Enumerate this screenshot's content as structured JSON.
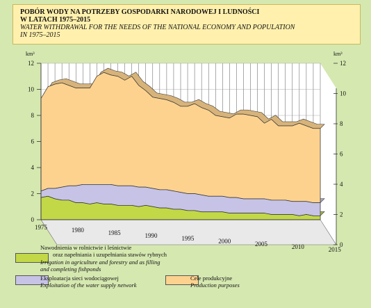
{
  "title": {
    "pl_line1": "POBÓR WODY NA POTRZEBY GOSPODARKI NARODOWEJ I LUDNOŚCI",
    "pl_line2": "W LATACH 1975–2015",
    "en_line1": "WATER WITHDRAWAL FOR THE NEEDS OF THE NATIONAL ECONOMY AND POPULATION",
    "en_line2": "IN 1975–2015"
  },
  "chart_data": {
    "type": "area",
    "stacked": true,
    "x": [
      1975,
      1976,
      1977,
      1978,
      1979,
      1980,
      1981,
      1982,
      1983,
      1984,
      1985,
      1986,
      1987,
      1988,
      1989,
      1990,
      1991,
      1992,
      1993,
      1994,
      1995,
      1996,
      1997,
      1998,
      1999,
      2000,
      2001,
      2002,
      2003,
      2004,
      2005,
      2006,
      2007,
      2008,
      2009,
      2010,
      2011,
      2012,
      2013,
      2014,
      2015
    ],
    "series": [
      {
        "name": "Nawodnienia w rolnictwie i leśnictwie oraz napełnianie i uzupełnianie stawów rybnych / Irrigation in agriculture and forestry and as filling and completing fishponds",
        "color": "#c3d847",
        "values": [
          1.7,
          1.8,
          1.6,
          1.5,
          1.5,
          1.3,
          1.3,
          1.2,
          1.3,
          1.2,
          1.2,
          1.1,
          1.1,
          1.1,
          1.0,
          1.1,
          1.0,
          0.9,
          0.9,
          0.8,
          0.8,
          0.7,
          0.7,
          0.6,
          0.6,
          0.6,
          0.6,
          0.5,
          0.5,
          0.5,
          0.5,
          0.5,
          0.5,
          0.4,
          0.4,
          0.4,
          0.4,
          0.3,
          0.4,
          0.3,
          0.3
        ]
      },
      {
        "name": "Eksploatacja sieci wodociągowej / Exploitation of the water supply network",
        "color": "#c6c3e6",
        "values": [
          0.5,
          0.6,
          0.8,
          1.0,
          1.1,
          1.3,
          1.4,
          1.5,
          1.4,
          1.5,
          1.5,
          1.5,
          1.5,
          1.5,
          1.5,
          1.4,
          1.4,
          1.4,
          1.4,
          1.4,
          1.3,
          1.3,
          1.3,
          1.3,
          1.2,
          1.2,
          1.2,
          1.2,
          1.2,
          1.1,
          1.1,
          1.1,
          1.1,
          1.1,
          1.1,
          1.1,
          1.0,
          1.1,
          1.0,
          1.0,
          1.0
        ]
      },
      {
        "name": "Cele produkcyjne / Production purposes",
        "color": "#fdd28f",
        "values": [
          7.1,
          7.8,
          8.0,
          8.0,
          7.7,
          7.5,
          7.4,
          7.4,
          8.3,
          8.6,
          8.4,
          8.4,
          8.1,
          8.4,
          7.8,
          7.4,
          7.0,
          7.0,
          6.9,
          6.8,
          6.6,
          6.7,
          6.9,
          6.7,
          6.6,
          6.2,
          6.1,
          6.1,
          6.4,
          6.5,
          6.4,
          6.3,
          5.8,
          6.2,
          5.7,
          5.7,
          5.8,
          6.0,
          5.8,
          5.7,
          5.7
        ]
      }
    ],
    "y_unit": "km³",
    "y_ticks_left": [
      0,
      2,
      4,
      6,
      8,
      10,
      12
    ],
    "y_ticks_right": [
      0,
      2,
      4,
      6,
      8,
      10,
      12
    ],
    "x_tick_labels": [
      1975,
      1980,
      1985,
      1990,
      1995,
      2000,
      2005,
      2010,
      2015
    ],
    "ylim": [
      0,
      12
    ]
  },
  "legend": {
    "irrigation": {
      "pl_line1": "Nawodnienia w rolnictwie i leśnictwie",
      "pl_line2": "oraz napełniania i uzupełniania stawów rybnych",
      "en_line1": "Irrigation in agriculture and forestry and as filling",
      "en_line2": "and completing fishponds",
      "color": "#c3d847"
    },
    "water_supply": {
      "pl": "Eksploatacja sieci wodociągowej",
      "en": "Exploitation of the water supply network",
      "color": "#c6c3e6"
    },
    "production": {
      "pl": "Cele produkcyjne",
      "en": "Production purposes",
      "color": "#fdd28f"
    }
  }
}
